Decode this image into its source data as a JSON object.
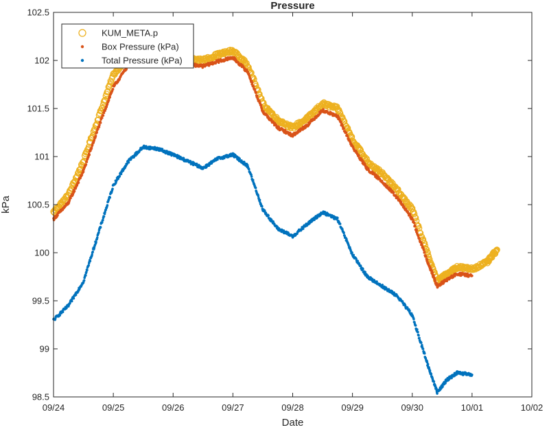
{
  "chart_data": {
    "type": "scatter",
    "title": "Pressure",
    "xlabel": "Date",
    "ylabel": "kPa",
    "x_axis_type": "date",
    "xlim": [
      "2016-09-24",
      "2016-10-02"
    ],
    "ylim": [
      98.5,
      102.5
    ],
    "x_tick_labels": [
      "09/24",
      "09/25",
      "09/26",
      "09/27",
      "09/28",
      "09/29",
      "09/30",
      "10/01",
      "10/02"
    ],
    "y_ticks": [
      98.5,
      99,
      99.5,
      100,
      100.5,
      101,
      101.5,
      102,
      102.5
    ],
    "y_tick_labels": [
      "98.5",
      "99",
      "99.5",
      "100",
      "100.5",
      "101",
      "101.5",
      "102",
      "102.5"
    ],
    "grid": false,
    "legend_position": "top-left",
    "series": [
      {
        "name": "KUM_META.p",
        "marker": "circle",
        "color": "#EDB120",
        "points": [
          [
            "2016-09-24 00:00",
            100.42
          ],
          [
            "2016-09-24 06:00",
            100.6
          ],
          [
            "2016-09-24 12:00",
            100.95
          ],
          [
            "2016-09-24 18:00",
            101.4
          ],
          [
            "2016-09-25 00:00",
            101.85
          ],
          [
            "2016-09-25 06:00",
            102.05
          ],
          [
            "2016-09-25 12:00",
            102.13
          ],
          [
            "2016-09-25 18:00",
            102.1
          ],
          [
            "2016-09-26 00:00",
            102.07
          ],
          [
            "2016-09-26 06:00",
            102.02
          ],
          [
            "2016-09-26 12:00",
            102.0
          ],
          [
            "2016-09-26 18:00",
            102.06
          ],
          [
            "2016-09-27 00:00",
            102.1
          ],
          [
            "2016-09-27 06:00",
            101.95
          ],
          [
            "2016-09-27 12:00",
            101.55
          ],
          [
            "2016-09-27 18:00",
            101.38
          ],
          [
            "2016-09-28 00:00",
            101.3
          ],
          [
            "2016-09-28 06:00",
            101.4
          ],
          [
            "2016-09-28 12:00",
            101.55
          ],
          [
            "2016-09-28 18:00",
            101.5
          ],
          [
            "2016-09-29 00:00",
            101.18
          ],
          [
            "2016-09-29 06:00",
            100.95
          ],
          [
            "2016-09-29 12:00",
            100.82
          ],
          [
            "2016-09-29 18:00",
            100.65
          ],
          [
            "2016-09-30 00:00",
            100.45
          ],
          [
            "2016-09-30 06:00",
            100.0
          ],
          [
            "2016-09-30 10:00",
            99.7
          ],
          [
            "2016-09-30 14:00",
            99.78
          ],
          [
            "2016-09-30 18:00",
            99.85
          ],
          [
            "2016-10-01 00:00",
            99.83
          ],
          [
            "2016-10-01 06:00",
            99.9
          ],
          [
            "2016-10-01 10:00",
            100.03
          ]
        ]
      },
      {
        "name": "Box Pressure (kPa)",
        "marker": "dot",
        "color": "#D95319",
        "points": [
          [
            "2016-09-24 00:00",
            100.35
          ],
          [
            "2016-09-24 06:00",
            100.52
          ],
          [
            "2016-09-24 12:00",
            100.85
          ],
          [
            "2016-09-24 18:00",
            101.3
          ],
          [
            "2016-09-25 00:00",
            101.72
          ],
          [
            "2016-09-25 06:00",
            101.95
          ],
          [
            "2016-09-25 12:00",
            102.06
          ],
          [
            "2016-09-25 18:00",
            102.04
          ],
          [
            "2016-09-26 00:00",
            102.01
          ],
          [
            "2016-09-26 06:00",
            101.96
          ],
          [
            "2016-09-26 12:00",
            101.94
          ],
          [
            "2016-09-26 18:00",
            101.99
          ],
          [
            "2016-09-27 00:00",
            102.03
          ],
          [
            "2016-09-27 06:00",
            101.88
          ],
          [
            "2016-09-27 12:00",
            101.47
          ],
          [
            "2016-09-27 18:00",
            101.3
          ],
          [
            "2016-09-28 00:00",
            101.22
          ],
          [
            "2016-09-28 06:00",
            101.33
          ],
          [
            "2016-09-28 12:00",
            101.48
          ],
          [
            "2016-09-28 18:00",
            101.42
          ],
          [
            "2016-09-29 00:00",
            101.1
          ],
          [
            "2016-09-29 06:00",
            100.87
          ],
          [
            "2016-09-29 12:00",
            100.74
          ],
          [
            "2016-09-29 18:00",
            100.57
          ],
          [
            "2016-09-30 00:00",
            100.35
          ],
          [
            "2016-09-30 06:00",
            99.92
          ],
          [
            "2016-09-30 10:00",
            99.65
          ],
          [
            "2016-09-30 14:00",
            99.72
          ],
          [
            "2016-09-30 18:00",
            99.78
          ],
          [
            "2016-10-01 00:00",
            99.76
          ]
        ]
      },
      {
        "name": "Total Pressure (kPa)",
        "marker": "dot",
        "color": "#0072BD",
        "points": [
          [
            "2016-09-24 00:00",
            99.3
          ],
          [
            "2016-09-24 06:00",
            99.45
          ],
          [
            "2016-09-24 12:00",
            99.7
          ],
          [
            "2016-09-24 18:00",
            100.2
          ],
          [
            "2016-09-25 00:00",
            100.7
          ],
          [
            "2016-09-25 06:00",
            100.95
          ],
          [
            "2016-09-25 12:00",
            101.1
          ],
          [
            "2016-09-25 18:00",
            101.08
          ],
          [
            "2016-09-26 00:00",
            101.02
          ],
          [
            "2016-09-26 06:00",
            100.95
          ],
          [
            "2016-09-26 12:00",
            100.88
          ],
          [
            "2016-09-26 18:00",
            100.98
          ],
          [
            "2016-09-27 00:00",
            101.02
          ],
          [
            "2016-09-27 06:00",
            100.9
          ],
          [
            "2016-09-27 12:00",
            100.45
          ],
          [
            "2016-09-27 18:00",
            100.25
          ],
          [
            "2016-09-28 00:00",
            100.17
          ],
          [
            "2016-09-28 06:00",
            100.3
          ],
          [
            "2016-09-28 12:00",
            100.42
          ],
          [
            "2016-09-28 18:00",
            100.35
          ],
          [
            "2016-09-29 00:00",
            99.98
          ],
          [
            "2016-09-29 06:00",
            99.75
          ],
          [
            "2016-09-29 12:00",
            99.65
          ],
          [
            "2016-09-29 18:00",
            99.55
          ],
          [
            "2016-09-30 00:00",
            99.35
          ],
          [
            "2016-09-30 06:00",
            98.85
          ],
          [
            "2016-09-30 10:00",
            98.55
          ],
          [
            "2016-09-30 14:00",
            98.68
          ],
          [
            "2016-09-30 18:00",
            98.75
          ],
          [
            "2016-10-01 00:00",
            98.73
          ]
        ]
      }
    ]
  }
}
